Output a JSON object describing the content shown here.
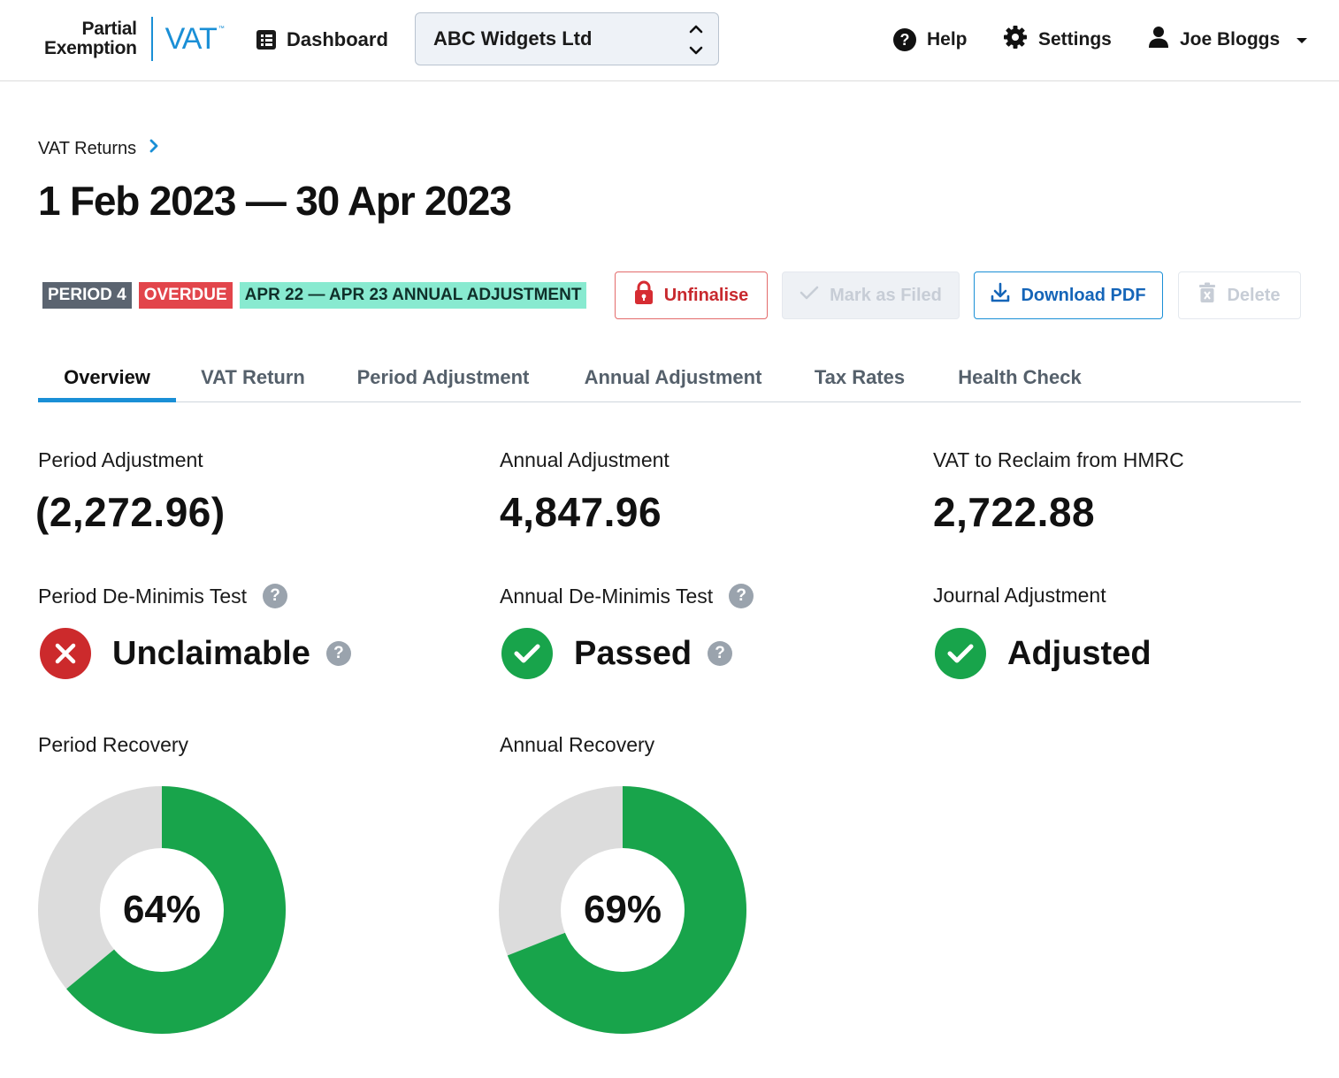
{
  "header": {
    "logo": {
      "line1": "Partial",
      "line2": "Exemption",
      "product": "VAT",
      "tm": "™"
    },
    "dashboard_label": "Dashboard",
    "company": "ABC Widgets Ltd",
    "help_label": "Help",
    "settings_label": "Settings",
    "user_name": "Joe Bloggs"
  },
  "breadcrumb": {
    "label": "VAT Returns"
  },
  "page_title": "1 Feb 2023 — 30 Apr 2023",
  "tags": {
    "period": "PERIOD 4",
    "overdue": "OVERDUE",
    "annual": "APR 22 — APR 23 ANNUAL ADJUSTMENT"
  },
  "actions": {
    "unfinalise": "Unfinalise",
    "mark_filed": "Mark as Filed",
    "download_pdf": "Download PDF",
    "delete": "Delete"
  },
  "tabs": [
    {
      "label": "Overview",
      "active": true
    },
    {
      "label": "VAT Return",
      "active": false
    },
    {
      "label": "Period Adjustment",
      "active": false
    },
    {
      "label": "Annual Adjustment",
      "active": false
    },
    {
      "label": "Tax Rates",
      "active": false
    },
    {
      "label": "Health Check",
      "active": false
    }
  ],
  "metrics": {
    "period_adjustment": {
      "label": "Period Adjustment",
      "value": "(2,272.96)"
    },
    "annual_adjustment": {
      "label": "Annual Adjustment",
      "value": "4,847.96"
    },
    "vat_reclaim": {
      "label": "VAT to Reclaim from HMRC",
      "value": "2,722.88"
    }
  },
  "tests": {
    "period_deminimis": {
      "label": "Period De-Minimis Test",
      "status": "Unclaimable",
      "ok": false
    },
    "annual_deminimis": {
      "label": "Annual De-Minimis Test",
      "status": "Passed",
      "ok": true
    },
    "journal": {
      "label": "Journal Adjustment",
      "status": "Adjusted",
      "ok": true
    }
  },
  "recovery": {
    "period": {
      "label": "Period Recovery",
      "percent": 64,
      "display": "64%"
    },
    "annual": {
      "label": "Annual Recovery",
      "percent": 69,
      "display": "69%"
    }
  },
  "colors": {
    "accent": "#1a8fd6",
    "success": "#18a44b",
    "danger": "#cc2a2c",
    "donut_rest": "#dcdcdc"
  }
}
